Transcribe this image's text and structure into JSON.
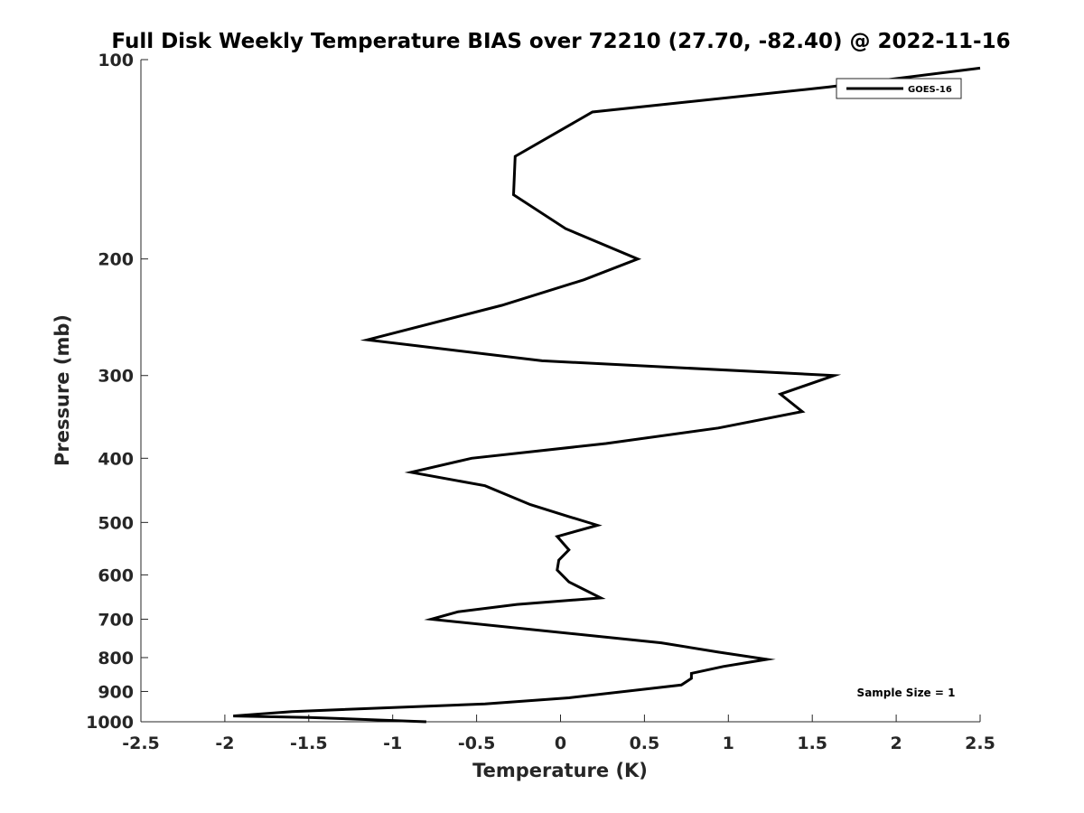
{
  "chart_data": {
    "type": "line",
    "title": "Full Disk Weekly Temperature BIAS over 72210 (27.70, -82.40) @ 2022-11-16",
    "xlabel": "Temperature (K)",
    "ylabel": "Pressure (mb)",
    "xlim": [
      -2.5,
      2.5
    ],
    "ylim": [
      100,
      1000
    ],
    "y_scale": "log",
    "y_reversed": true,
    "x_ticks": [
      "-2.5",
      "-2",
      "-1.5",
      "-1",
      "-0.5",
      "0",
      "0.5",
      "1",
      "1.5",
      "2",
      "2.5"
    ],
    "y_ticks": [
      "100",
      "200",
      "300",
      "400",
      "500",
      "600",
      "700",
      "800",
      "900",
      "1000"
    ],
    "grid": false,
    "legend_position": "top-right",
    "annotation": "Sample Size = 1",
    "series": [
      {
        "name": "GOES-16",
        "color": "#000000",
        "points": [
          {
            "x": 2.5,
            "y": 103
          },
          {
            "x": 1.6,
            "y": 110
          },
          {
            "x": 0.19,
            "y": 120
          },
          {
            "x": -0.27,
            "y": 140
          },
          {
            "x": -0.28,
            "y": 160
          },
          {
            "x": 0.03,
            "y": 180
          },
          {
            "x": 0.46,
            "y": 200
          },
          {
            "x": 0.14,
            "y": 215
          },
          {
            "x": -0.35,
            "y": 235
          },
          {
            "x": -1.15,
            "y": 265
          },
          {
            "x": -0.11,
            "y": 285
          },
          {
            "x": 1.63,
            "y": 300
          },
          {
            "x": 1.31,
            "y": 320
          },
          {
            "x": 1.44,
            "y": 340
          },
          {
            "x": 0.94,
            "y": 360
          },
          {
            "x": 0.27,
            "y": 380
          },
          {
            "x": -0.53,
            "y": 400
          },
          {
            "x": -0.89,
            "y": 420
          },
          {
            "x": -0.45,
            "y": 440
          },
          {
            "x": -0.18,
            "y": 470
          },
          {
            "x": 0.05,
            "y": 490
          },
          {
            "x": 0.22,
            "y": 505
          },
          {
            "x": -0.02,
            "y": 525
          },
          {
            "x": 0.05,
            "y": 550
          },
          {
            "x": -0.01,
            "y": 570
          },
          {
            "x": -0.02,
            "y": 590
          },
          {
            "x": 0.05,
            "y": 615
          },
          {
            "x": 0.24,
            "y": 650
          },
          {
            "x": -0.26,
            "y": 665
          },
          {
            "x": -0.61,
            "y": 682
          },
          {
            "x": -0.77,
            "y": 700
          },
          {
            "x": 0.6,
            "y": 760
          },
          {
            "x": 0.94,
            "y": 785
          },
          {
            "x": 1.23,
            "y": 805
          },
          {
            "x": 0.97,
            "y": 825
          },
          {
            "x": 0.78,
            "y": 845
          },
          {
            "x": 0.78,
            "y": 860
          },
          {
            "x": 0.72,
            "y": 880
          },
          {
            "x": 0.05,
            "y": 920
          },
          {
            "x": -0.45,
            "y": 940
          },
          {
            "x": -1.6,
            "y": 965
          },
          {
            "x": -1.95,
            "y": 980
          },
          {
            "x": -1.5,
            "y": 985
          },
          {
            "x": -0.8,
            "y": 1000
          }
        ]
      }
    ]
  }
}
